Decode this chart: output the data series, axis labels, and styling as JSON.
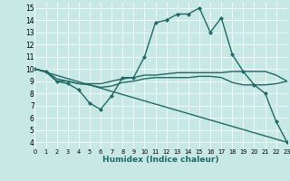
{
  "title": "",
  "xlabel": "Humidex (Indice chaleur)",
  "xlim": [
    0,
    23
  ],
  "ylim": [
    3.5,
    15.5
  ],
  "xticks": [
    0,
    1,
    2,
    3,
    4,
    5,
    6,
    7,
    8,
    9,
    10,
    11,
    12,
    13,
    14,
    15,
    16,
    17,
    18,
    19,
    20,
    21,
    22,
    23
  ],
  "yticks": [
    4,
    5,
    6,
    7,
    8,
    9,
    10,
    11,
    12,
    13,
    14,
    15
  ],
  "bg_color": "#c8e8e5",
  "line_color": "#1e6b65",
  "line_width": 1.0,
  "marker": "D",
  "marker_size": 2.0,
  "lines": [
    {
      "x": [
        0,
        1,
        2,
        3,
        4,
        5,
        6,
        7,
        8,
        9,
        10,
        11,
        12,
        13,
        14,
        15,
        16,
        17,
        18,
        19,
        20,
        21,
        22,
        23
      ],
      "y": [
        10.0,
        9.8,
        9.0,
        8.8,
        8.3,
        7.2,
        6.7,
        7.8,
        9.3,
        9.3,
        11.0,
        13.8,
        14.0,
        14.5,
        14.5,
        15.0,
        13.0,
        14.2,
        11.2,
        9.8,
        8.7,
        8.0,
        5.7,
        4.0
      ],
      "has_marker": true
    },
    {
      "x": [
        0,
        1,
        2,
        3,
        4,
        5,
        6,
        7,
        8,
        9,
        10,
        11,
        12,
        13,
        14,
        15,
        16,
        17,
        18,
        19,
        20,
        21,
        22,
        23
      ],
      "y": [
        10.0,
        9.8,
        9.2,
        9.0,
        8.8,
        8.8,
        8.8,
        9.0,
        9.2,
        9.3,
        9.5,
        9.5,
        9.6,
        9.7,
        9.7,
        9.7,
        9.7,
        9.7,
        9.8,
        9.8,
        9.8,
        9.8,
        9.5,
        9.0
      ],
      "has_marker": false
    },
    {
      "x": [
        0,
        1,
        2,
        3,
        4,
        5,
        6,
        7,
        8,
        9,
        10,
        11,
        12,
        13,
        14,
        15,
        16,
        17,
        18,
        19,
        20,
        21,
        22,
        23
      ],
      "y": [
        10.0,
        9.8,
        9.0,
        9.0,
        8.8,
        8.7,
        8.5,
        8.6,
        8.9,
        9.0,
        9.2,
        9.3,
        9.3,
        9.3,
        9.3,
        9.4,
        9.4,
        9.3,
        8.9,
        8.7,
        8.7,
        8.7,
        8.8,
        9.0
      ],
      "has_marker": false
    },
    {
      "x": [
        0,
        23
      ],
      "y": [
        10.0,
        4.0
      ],
      "has_marker": false
    }
  ]
}
